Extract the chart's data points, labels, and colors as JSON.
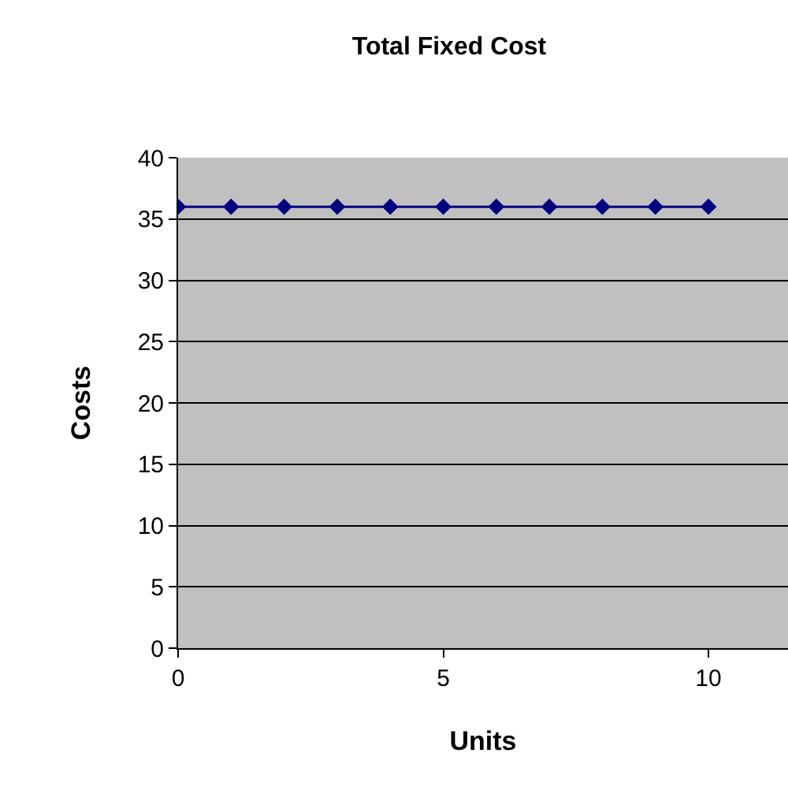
{
  "chart_data": {
    "type": "line",
    "title": "Total Fixed Cost",
    "xlabel": "Units",
    "ylabel": "Costs",
    "x": [
      0,
      1,
      2,
      3,
      4,
      5,
      6,
      7,
      8,
      9,
      10
    ],
    "series": [
      {
        "color": "#000080",
        "values": [
          36,
          36,
          36,
          36,
          36,
          36,
          36,
          36,
          36,
          36,
          36
        ]
      }
    ],
    "xlim": [
      0,
      11.5
    ],
    "xticks": [
      0,
      5,
      10
    ],
    "ylim": [
      0,
      40
    ],
    "yticks": [
      0,
      5,
      10,
      15,
      20,
      25,
      30,
      35,
      40
    ],
    "grid": "y",
    "marker": "diamond"
  }
}
